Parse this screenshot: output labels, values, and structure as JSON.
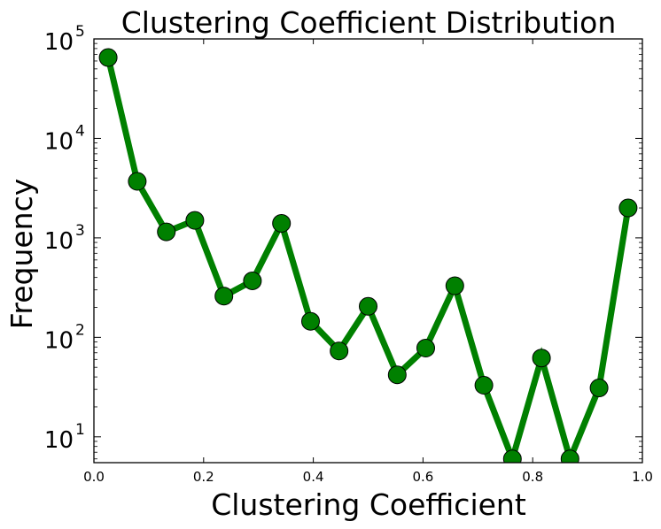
{
  "chart_data": {
    "type": "line",
    "title": "Clustering Coefficient Distribution",
    "xlabel": "Clustering Coefficient",
    "ylabel": "Frequency",
    "xlim": [
      0.0,
      1.0
    ],
    "ylim": [
      5.5,
      100000
    ],
    "yscale": "log",
    "grid": false,
    "xticks": [
      "0.0",
      "0.2",
      "0.4",
      "0.6",
      "0.8",
      "1.0"
    ],
    "yticks": [
      {
        "base": "10",
        "exp": "1",
        "value": 10
      },
      {
        "base": "10",
        "exp": "2",
        "value": 100
      },
      {
        "base": "10",
        "exp": "3",
        "value": 1000
      },
      {
        "base": "10",
        "exp": "4",
        "value": 10000
      },
      {
        "base": "10",
        "exp": "5",
        "value": 100000
      }
    ],
    "line_color": "#008000",
    "marker_color": "#008000",
    "series": [
      {
        "x": [
          0.026,
          0.079,
          0.132,
          0.184,
          0.237,
          0.289,
          0.342,
          0.395,
          0.447,
          0.5,
          0.553,
          0.605,
          0.658,
          0.711,
          0.763,
          0.816,
          0.868,
          0.921,
          0.974
        ],
        "y": [
          65000,
          3700,
          1150,
          1500,
          260,
          370,
          1400,
          145,
          73,
          205,
          42,
          78,
          330,
          33,
          6,
          62,
          6,
          31,
          2000
        ]
      }
    ]
  }
}
